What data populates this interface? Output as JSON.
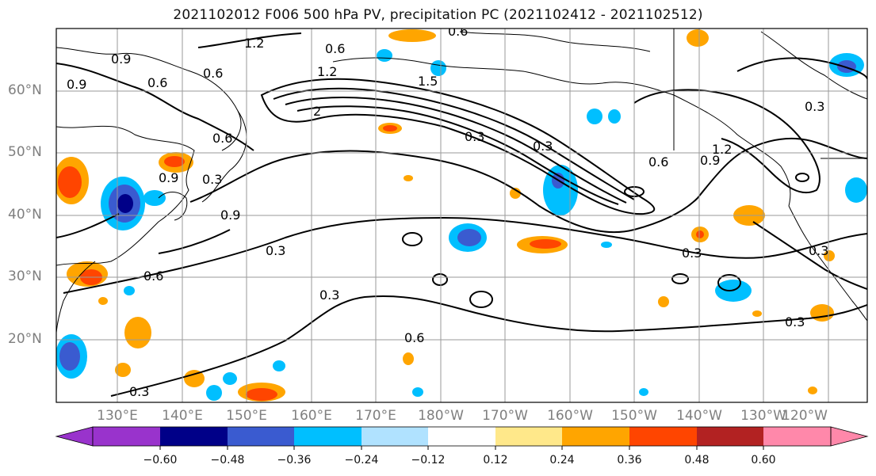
{
  "title": "2021102012 F006 500 hPa PV, precipitation PC (2021102412 - 2021102512)",
  "lat_labels": [
    "60°N",
    "50°N",
    "40°N",
    "30°N",
    "20°N"
  ],
  "lon_labels": [
    "130°E",
    "140°E",
    "150°E",
    "160°E",
    "170°E",
    "180°W",
    "170°W",
    "160°W",
    "150°W",
    "140°W",
    "130°W",
    "120°W"
  ],
  "colorbar": {
    "colors": [
      "#9933cc",
      "#000088",
      "#3a5bd0",
      "#00bfff",
      "#b0e2ff",
      "#ffffff",
      "#ffe88a",
      "#ffa500",
      "#ff4500",
      "#b22222",
      "#ff88aa"
    ],
    "tick_labels": [
      "−0.60",
      "−0.48",
      "−0.36",
      "−0.24",
      "−0.12",
      "0.12",
      "0.24",
      "0.36",
      "0.48",
      "0.60"
    ]
  },
  "contour_labels": [
    "1.2",
    "0.6",
    "0.9",
    "0.9",
    "0.6",
    "0.6",
    "1.2",
    "1.5",
    "2",
    "0.6",
    "0.3",
    "0.9",
    "0.6",
    "0.9",
    "1.2",
    "0.3",
    "0.3",
    "0.3",
    "0.9",
    "0.3",
    "0.6",
    "0.3",
    "0.6",
    "0.3",
    "0.3",
    "0.3",
    "0.3",
    "0.6"
  ]
}
